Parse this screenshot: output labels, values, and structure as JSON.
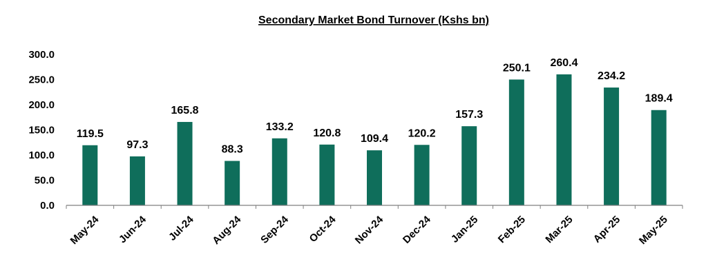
{
  "chart_data": {
    "type": "bar",
    "title": "Secondary Market Bond Turnover (Kshs bn)",
    "xlabel": "",
    "ylabel": "",
    "categories": [
      "May-24",
      "Jun-24",
      "Jul-24",
      "Aug-24",
      "Sep-24",
      "Oct-24",
      "Nov-24",
      "Dec-24",
      "Jan-25",
      "Feb-25",
      "Mar-25",
      "Apr-25",
      "May-25"
    ],
    "values": [
      119.5,
      97.3,
      165.8,
      88.3,
      133.2,
      120.8,
      109.4,
      120.2,
      157.3,
      250.1,
      260.4,
      234.2,
      189.4
    ],
    "data_labels": [
      "119.5",
      "97.3",
      "165.8",
      "88.3",
      "133.2",
      "120.8",
      "109.4",
      "120.2",
      "157.3",
      "250.1",
      "260.4",
      "234.2",
      "189.4"
    ],
    "ylim": [
      0,
      300
    ],
    "y_ticks": [
      0,
      50,
      100,
      150,
      200,
      250,
      300
    ],
    "y_tick_labels": [
      "0.0",
      "50.0",
      "100.0",
      "150.0",
      "200.0",
      "250.0",
      "300.0"
    ],
    "grid": false,
    "legend": "none",
    "bar_color": "#0f6e5b",
    "axis_color": "#7f7f7f"
  }
}
